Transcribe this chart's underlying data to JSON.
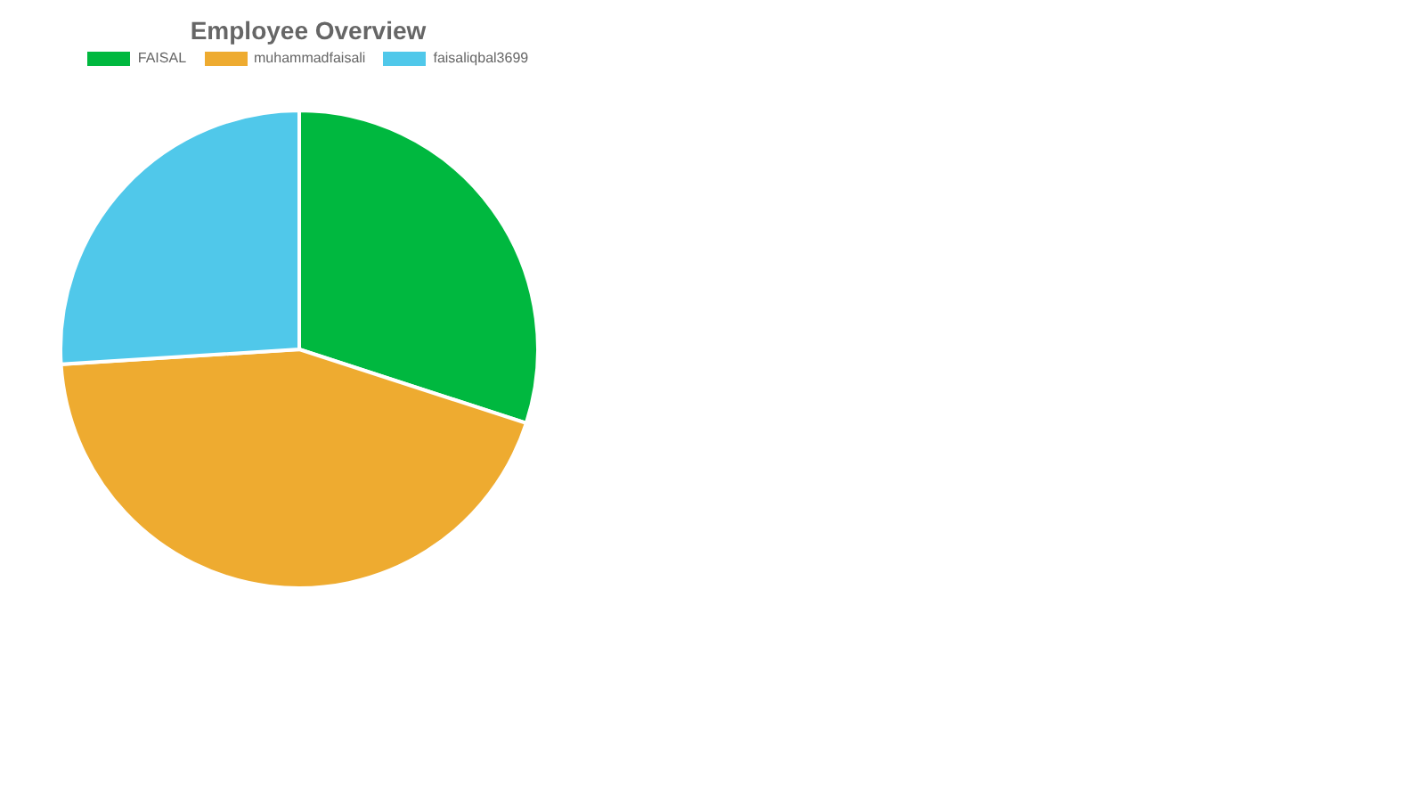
{
  "chart_data": {
    "type": "pie",
    "title": "Employee Overview",
    "categories": [
      "FAISAL",
      "muhammadfaisali",
      "faisaliqbal3699"
    ],
    "values": [
      30,
      44,
      26
    ],
    "colors": [
      "#00b83f",
      "#eeab30",
      "#50c8ea"
    ],
    "legend": "top"
  }
}
